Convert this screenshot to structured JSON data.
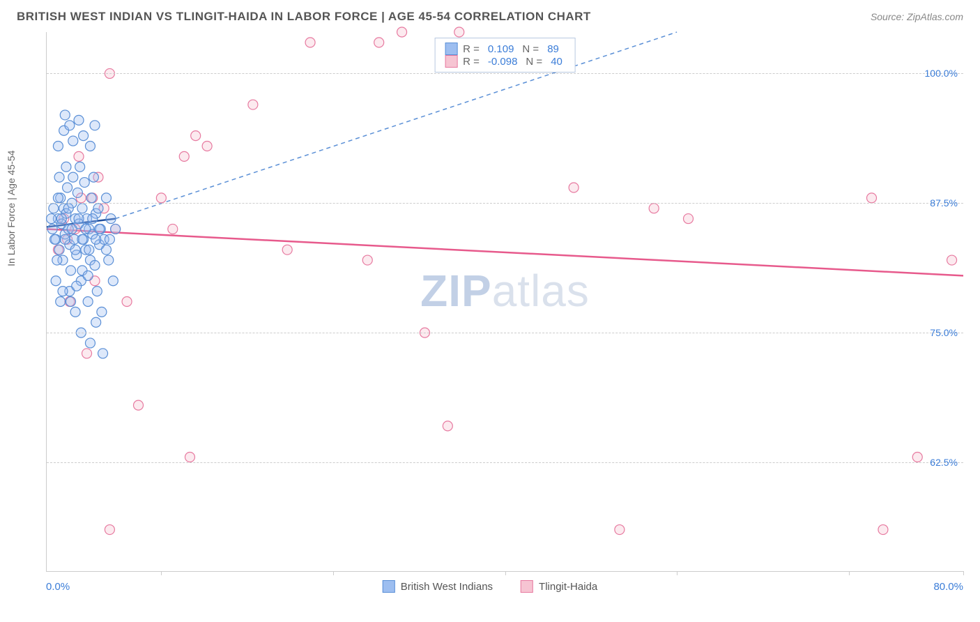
{
  "title": "BRITISH WEST INDIAN VS TLINGIT-HAIDA IN LABOR FORCE | AGE 45-54 CORRELATION CHART",
  "source": "Source: ZipAtlas.com",
  "ylabel": "In Labor Force | Age 45-54",
  "watermark_zip": "ZIP",
  "watermark_atlas": "atlas",
  "chart": {
    "type": "scatter",
    "background_color": "#ffffff",
    "grid_color": "#cccccc",
    "grid_dash": "4,4",
    "xlim": [
      0,
      80
    ],
    "ylim": [
      52,
      104
    ],
    "x_label_min": "0.0%",
    "x_label_max": "80.0%",
    "x_ticks": [
      10,
      25,
      40,
      55,
      70,
      80
    ],
    "y_ticks": [
      {
        "value": 100.0,
        "label": "100.0%"
      },
      {
        "value": 87.5,
        "label": "87.5%"
      },
      {
        "value": 75.0,
        "label": "75.0%"
      },
      {
        "value": 62.5,
        "label": "62.5%"
      }
    ],
    "label_color": "#3b7dd8",
    "label_fontsize": 14,
    "marker_radius": 7,
    "marker_stroke_width": 1.2,
    "marker_fill_opacity": 0.35,
    "series": [
      {
        "name": "British West Indians",
        "color_fill": "#9dbef0",
        "color_stroke": "#5a8fd6",
        "R": "0.109",
        "N": "89",
        "trend": {
          "x1": 0,
          "y1": 85.2,
          "x2": 6,
          "y2": 86.0,
          "stroke": "#1f4e9c",
          "width": 2.5,
          "dash": "none"
        },
        "trend_ext": {
          "x1": 6,
          "y1": 86.0,
          "x2": 55,
          "y2": 104,
          "stroke": "#5a8fd6",
          "width": 1.5,
          "dash": "6,5"
        },
        "points": [
          [
            0.5,
            85
          ],
          [
            0.8,
            84
          ],
          [
            1.0,
            86
          ],
          [
            1.1,
            83
          ],
          [
            1.2,
            88
          ],
          [
            1.3,
            85.5
          ],
          [
            1.4,
            82
          ],
          [
            1.5,
            87
          ],
          [
            1.6,
            84.5
          ],
          [
            1.7,
            86.5
          ],
          [
            1.8,
            89
          ],
          [
            1.9,
            85
          ],
          [
            2.0,
            83.5
          ],
          [
            2.1,
            81
          ],
          [
            2.2,
            87.5
          ],
          [
            2.3,
            90
          ],
          [
            2.4,
            84
          ],
          [
            2.5,
            86
          ],
          [
            2.6,
            82.5
          ],
          [
            2.7,
            88.5
          ],
          [
            2.8,
            85.5
          ],
          [
            2.9,
            91
          ],
          [
            3.0,
            80
          ],
          [
            3.1,
            87
          ],
          [
            3.2,
            84
          ],
          [
            3.3,
            89.5
          ],
          [
            3.4,
            83
          ],
          [
            3.5,
            86
          ],
          [
            3.6,
            78
          ],
          [
            3.7,
            85
          ],
          [
            3.8,
            82
          ],
          [
            3.9,
            88
          ],
          [
            4.0,
            84.5
          ],
          [
            4.1,
            90
          ],
          [
            4.2,
            81.5
          ],
          [
            4.3,
            86.5
          ],
          [
            4.4,
            79
          ],
          [
            4.5,
            87
          ],
          [
            4.6,
            83.5
          ],
          [
            4.7,
            85
          ],
          [
            4.8,
            77
          ],
          [
            5.0,
            84
          ],
          [
            5.2,
            88
          ],
          [
            5.4,
            82
          ],
          [
            5.6,
            86
          ],
          [
            5.8,
            80
          ],
          [
            6.0,
            85
          ],
          [
            1.0,
            93
          ],
          [
            1.5,
            94.5
          ],
          [
            2.0,
            95
          ],
          [
            2.3,
            93.5
          ],
          [
            2.8,
            95.5
          ],
          [
            3.2,
            94
          ],
          [
            3.8,
            93
          ],
          [
            4.2,
            95
          ],
          [
            1.6,
            96
          ],
          [
            2.5,
            77
          ],
          [
            3.0,
            75
          ],
          [
            3.8,
            74
          ],
          [
            4.3,
            76
          ],
          [
            1.2,
            78
          ],
          [
            2.0,
            79
          ],
          [
            0.8,
            80
          ],
          [
            0.6,
            87
          ],
          [
            0.9,
            82
          ],
          [
            1.1,
            90
          ],
          [
            1.4,
            79
          ],
          [
            1.7,
            91
          ],
          [
            2.1,
            78
          ],
          [
            2.6,
            79.5
          ],
          [
            3.1,
            81
          ],
          [
            3.6,
            80.5
          ],
          [
            0.4,
            86
          ],
          [
            0.7,
            84
          ],
          [
            1.0,
            88
          ],
          [
            1.3,
            86
          ],
          [
            1.6,
            84
          ],
          [
            1.9,
            87
          ],
          [
            2.2,
            85
          ],
          [
            2.5,
            83
          ],
          [
            2.8,
            86
          ],
          [
            3.1,
            84
          ],
          [
            3.4,
            85
          ],
          [
            3.7,
            83
          ],
          [
            4.0,
            86
          ],
          [
            4.3,
            84
          ],
          [
            4.6,
            85
          ],
          [
            4.9,
            73
          ],
          [
            5.2,
            83
          ],
          [
            5.5,
            84
          ]
        ]
      },
      {
        "name": "Tlingit-Haida",
        "color_fill": "#f6c4d2",
        "color_stroke": "#e77aa0",
        "R": "-0.098",
        "N": "40",
        "trend": {
          "x1": 0,
          "y1": 85.0,
          "x2": 80,
          "y2": 80.5,
          "stroke": "#e75a8c",
          "width": 2.5,
          "dash": "none"
        },
        "points": [
          [
            5.5,
            100
          ],
          [
            5.0,
            87
          ],
          [
            3.0,
            88
          ],
          [
            2.0,
            78
          ],
          [
            3.5,
            73
          ],
          [
            1.5,
            86
          ],
          [
            1.8,
            84
          ],
          [
            2.5,
            85
          ],
          [
            4.0,
            88
          ],
          [
            4.5,
            90
          ],
          [
            6.0,
            85
          ],
          [
            7.0,
            78
          ],
          [
            8.0,
            68
          ],
          [
            10.0,
            88
          ],
          [
            11.0,
            85
          ],
          [
            12.0,
            92
          ],
          [
            13.0,
            94
          ],
          [
            14.0,
            93
          ],
          [
            12.5,
            63
          ],
          [
            5.5,
            56
          ],
          [
            18.0,
            97
          ],
          [
            21.0,
            83
          ],
          [
            23.0,
            103
          ],
          [
            28.0,
            82
          ],
          [
            29.0,
            103
          ],
          [
            31.0,
            104
          ],
          [
            36.0,
            104
          ],
          [
            33.0,
            75
          ],
          [
            35.0,
            66
          ],
          [
            46.0,
            89
          ],
          [
            53.0,
            87
          ],
          [
            56.0,
            86
          ],
          [
            50.0,
            56
          ],
          [
            72.0,
            88
          ],
          [
            76.0,
            63
          ],
          [
            73.0,
            56
          ],
          [
            79.0,
            82
          ],
          [
            2.8,
            92
          ],
          [
            4.2,
            80
          ],
          [
            1.0,
            83
          ]
        ]
      }
    ],
    "legend_labels": {
      "R": "R =",
      "N": "N ="
    },
    "bottom_legend": [
      {
        "label": "British West Indians",
        "fill": "#9dbef0",
        "stroke": "#5a8fd6"
      },
      {
        "label": "Tlingit-Haida",
        "fill": "#f6c4d2",
        "stroke": "#e77aa0"
      }
    ]
  }
}
